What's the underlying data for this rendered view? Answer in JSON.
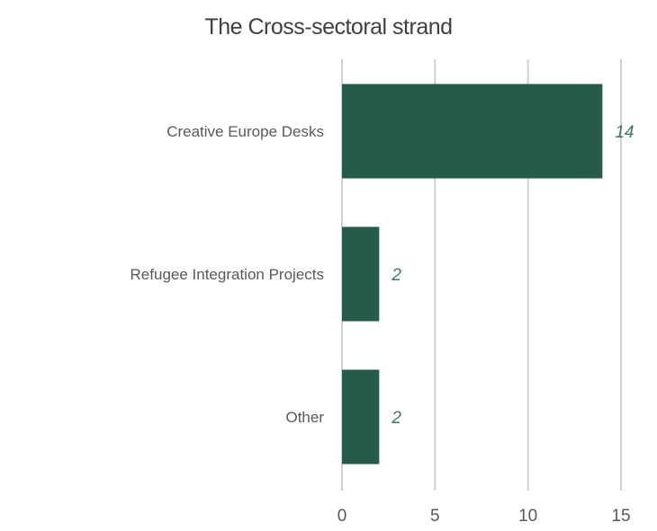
{
  "chart_data": {
    "type": "bar",
    "orientation": "horizontal",
    "title": "The Cross-sectoral strand",
    "categories": [
      "Creative Europe Desks",
      "Refugee Integration Projects",
      "Other"
    ],
    "values": [
      14,
      2,
      2
    ],
    "data_labels": [
      "14",
      "2",
      "2"
    ],
    "xlabel": "",
    "ylabel": "",
    "xlim": [
      0,
      15
    ],
    "xticks": [
      0,
      5,
      10,
      15
    ],
    "xtick_labels": [
      "0",
      "5",
      "10",
      "15"
    ],
    "grid": true,
    "legend": "none",
    "colors": {
      "bar": "#265a4a",
      "data_label": "#3a7a66",
      "grid": "#d0d0d0",
      "text": "#595959"
    }
  }
}
